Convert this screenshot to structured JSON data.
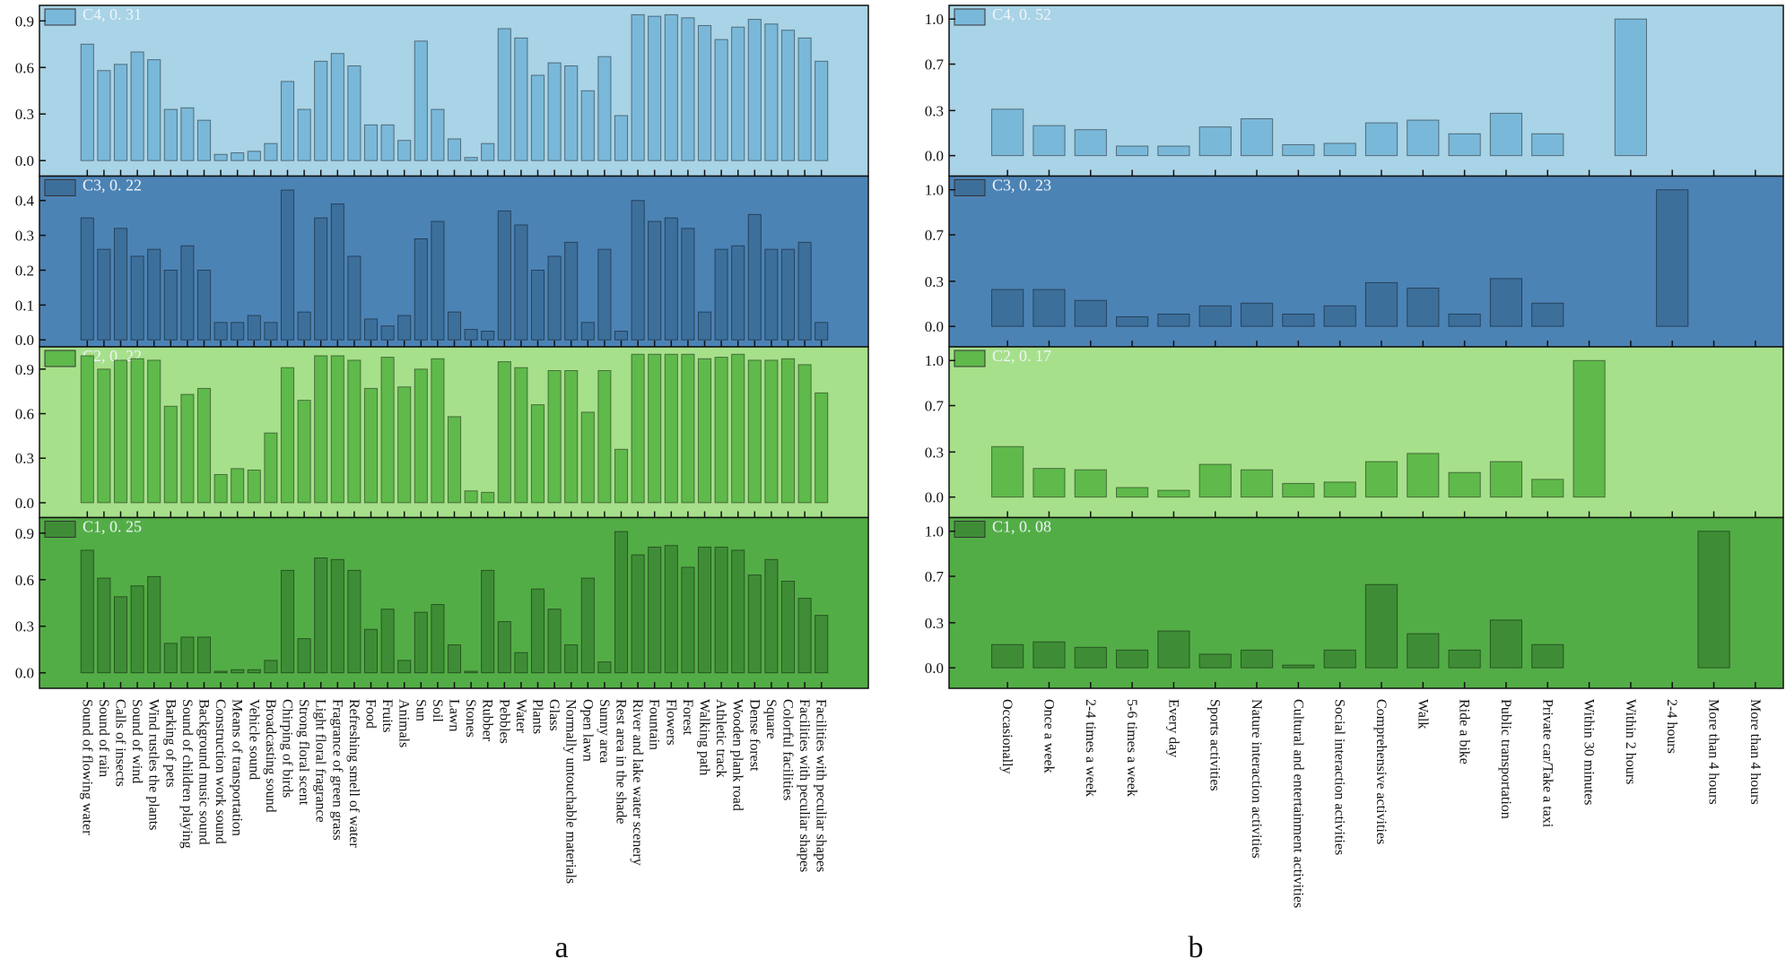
{
  "chart_data": [
    {
      "type": "bar",
      "label": "a",
      "categories": [
        "Sound of flowing water",
        "Sound of rain",
        "Calls of insects",
        "Sound of wind",
        "Wind rustles the plants",
        "Barking of pets",
        "Sound of children playing",
        "Background music sound",
        "Construction work sound",
        "Means of transportation",
        "Vehicle sound",
        "Broadcasting sound",
        "Chirping of birds",
        "Strong floral scent",
        "Light floral fragrance",
        "Fragrance of green grass",
        "Refreshing smell of water",
        "Food",
        "Fruits",
        "Animals",
        "Sun",
        "Soil",
        "Lawn",
        "Stones",
        "Rubber",
        "Pebbles",
        "Water",
        "Plants",
        "Glass",
        "Normally untouchable materials",
        "Open lawn",
        "Sunny area",
        "Rest area in the shade",
        "River and lake water scenery",
        "Fountain",
        "Flowers",
        "Forest",
        "Walking path",
        "Athletic track",
        "Wooden plank road",
        "Dense forest",
        "Square",
        "Colorful facilities",
        "Facilities with peculiar shapes",
        "Facilities with peculiar shapes"
      ],
      "series": [
        {
          "name": "C4, 0. 31",
          "color": "#7ab8d9",
          "background": "#a9d3e6",
          "ylim": [
            -0.1,
            1.0
          ],
          "yticks": [
            {
              "value": 0,
              "label": "0.0"
            },
            0.3,
            0.6,
            0.9
          ],
          "values": [
            0.75,
            0.58,
            0.62,
            0.7,
            0.65,
            0.33,
            0.34,
            0.26,
            0.04,
            0.05,
            0.06,
            0.11,
            0.51,
            0.33,
            0.64,
            0.69,
            0.61,
            0.23,
            0.23,
            0.13,
            0.77,
            0.33,
            0.14,
            0.02,
            0.11,
            0.85,
            0.79,
            0.55,
            0.63,
            0.61,
            0.45,
            0.67,
            0.29,
            0.94,
            0.93,
            0.94,
            0.92,
            0.87,
            0.78,
            0.86,
            0.91,
            0.88,
            0.84,
            0.79,
            0.64
          ]
        },
        {
          "name": "C3, 0. 22",
          "color": "#3d6f9b",
          "background": "#4c83b5",
          "ylim": [
            -0.02,
            0.47
          ],
          "yticks": [
            {
              "value": 0,
              "label": "0.0"
            },
            0.1,
            0.2,
            0.3,
            0.4
          ],
          "values": [
            0.35,
            0.26,
            0.32,
            0.24,
            0.26,
            0.2,
            0.27,
            0.2,
            0.05,
            0.05,
            0.07,
            0.05,
            0.43,
            0.08,
            0.35,
            0.39,
            0.24,
            0.06,
            0.04,
            0.07,
            0.29,
            0.34,
            0.08,
            0.03,
            0.025,
            0.37,
            0.33,
            0.2,
            0.24,
            0.28,
            0.05,
            0.26,
            0.025,
            0.4,
            0.34,
            0.35,
            0.32,
            0.08,
            0.26,
            0.27,
            0.36,
            0.26,
            0.26,
            0.28,
            0.05
          ]
        },
        {
          "name": "C2, 0. 22",
          "color": "#5fb94b",
          "background": "#a7e08b",
          "ylim": [
            -0.1,
            1.05
          ],
          "yticks": [
            {
              "value": 0,
              "label": "0.0"
            },
            0.3,
            0.6,
            0.9
          ],
          "values": [
            0.99,
            0.9,
            0.96,
            0.97,
            0.96,
            0.65,
            0.73,
            0.77,
            0.19,
            0.23,
            0.22,
            0.47,
            0.91,
            0.69,
            0.99,
            0.99,
            0.96,
            0.77,
            0.98,
            0.78,
            0.9,
            0.97,
            0.58,
            0.08,
            0.07,
            0.95,
            0.91,
            0.66,
            0.89,
            0.89,
            0.61,
            0.89,
            0.36,
            1.0,
            1.0,
            1.0,
            1.0,
            0.97,
            0.98,
            1.0,
            0.96,
            0.96,
            0.97,
            0.93,
            0.74
          ]
        },
        {
          "name": "C1, 0. 25",
          "color": "#3e8d36",
          "background": "#53ad46",
          "ylim": [
            -0.1,
            1.0
          ],
          "yticks": [
            {
              "value": 0,
              "label": "0.0"
            },
            0.3,
            0.6,
            0.9
          ],
          "values": [
            0.79,
            0.61,
            0.49,
            0.56,
            0.62,
            0.19,
            0.23,
            0.23,
            0.01,
            0.02,
            0.02,
            0.08,
            0.66,
            0.22,
            0.74,
            0.73,
            0.66,
            0.28,
            0.41,
            0.08,
            0.39,
            0.44,
            0.18,
            0.01,
            0.66,
            0.33,
            0.13,
            0.54,
            0.41,
            0.18,
            0.61,
            0.07,
            0.91,
            0.76,
            0.81,
            0.82,
            0.68,
            0.81,
            0.81,
            0.79,
            0.63,
            0.73,
            0.59,
            0.48,
            0.37
          ]
        }
      ]
    },
    {
      "type": "bar",
      "label": "b",
      "categories": [
        "Occasionally",
        "Once a week",
        "2-4 times a week",
        "5-6 times a week",
        "Every day",
        "Sports activities",
        "Nature interaction activities",
        "Cultural and entertainment activities",
        "Social interaction activities",
        "Comprehensive activities",
        "Walk",
        "Ride a bike",
        "Public transportation",
        "Private car/Take a taxi",
        "Within 30 minutes",
        "Within 2 hours",
        "2-4 hours",
        "More than 4 hours",
        "More than 4 hours"
      ],
      "series": [
        {
          "name": "C4, 0. 52",
          "color": "#7ab8d9",
          "background": "#a9d3e6",
          "ylim": [
            -0.15,
            1.1
          ],
          "yticks": [
            {
              "value": 0,
              "label": "0.0"
            },
            {
              "value": 0.33,
              "label": "0.3"
            },
            {
              "value": 0.67,
              "label": "0.7"
            },
            {
              "value": 1,
              "label": "1.0"
            }
          ],
          "values": [
            0.34,
            0.22,
            0.19,
            0.07,
            0.07,
            0.21,
            0.27,
            0.08,
            0.09,
            0.24,
            0.26,
            0.16,
            0.31,
            0.16,
            0,
            1.0,
            0,
            0,
            0
          ]
        },
        {
          "name": "C3, 0. 23",
          "color": "#3d6f9b",
          "background": "#4c83b5",
          "ylim": [
            -0.15,
            1.1
          ],
          "yticks": [
            {
              "value": 0,
              "label": "0.0"
            },
            {
              "value": 0.33,
              "label": "0.3"
            },
            {
              "value": 0.67,
              "label": "0.7"
            },
            {
              "value": 1,
              "label": "1.0"
            }
          ],
          "values": [
            0.27,
            0.27,
            0.19,
            0.07,
            0.09,
            0.15,
            0.17,
            0.09,
            0.15,
            0.32,
            0.28,
            0.09,
            0.35,
            0.17,
            0,
            0,
            1.0,
            0,
            0
          ]
        },
        {
          "name": "C2, 0. 17",
          "color": "#5fb94b",
          "background": "#a7e08b",
          "ylim": [
            -0.15,
            1.1
          ],
          "yticks": [
            {
              "value": 0,
              "label": "0.0"
            },
            {
              "value": 0.33,
              "label": "0.3"
            },
            {
              "value": 0.67,
              "label": "0.7"
            },
            {
              "value": 1,
              "label": "1.0"
            }
          ],
          "values": [
            0.37,
            0.21,
            0.2,
            0.07,
            0.05,
            0.24,
            0.2,
            0.1,
            0.11,
            0.26,
            0.32,
            0.18,
            0.26,
            0.13,
            1.0,
            0,
            0,
            0,
            0
          ]
        },
        {
          "name": "C1, 0. 08",
          "color": "#3e8d36",
          "background": "#53ad46",
          "ylim": [
            -0.15,
            1.1
          ],
          "yticks": [
            {
              "value": 0,
              "label": "0.0"
            },
            {
              "value": 0.33,
              "label": "0.3"
            },
            {
              "value": 0.67,
              "label": "0.7"
            },
            {
              "value": 1,
              "label": "1.0"
            }
          ],
          "values": [
            0.17,
            0.19,
            0.15,
            0.13,
            0.27,
            0.1,
            0.13,
            0.02,
            0.13,
            0.61,
            0.25,
            0.13,
            0.35,
            0.17,
            0,
            0,
            0,
            1.0,
            0
          ]
        }
      ]
    }
  ]
}
